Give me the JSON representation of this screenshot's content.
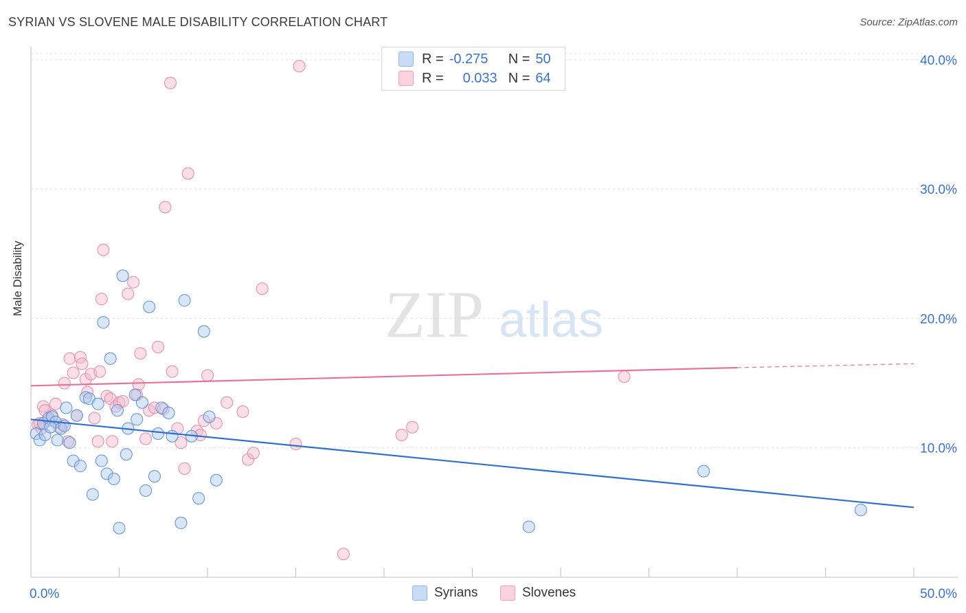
{
  "header": {
    "title": "SYRIAN VS SLOVENE MALE DISABILITY CORRELATION CHART",
    "source": "Source: ZipAtlas.com"
  },
  "watermark": {
    "zip": "ZIP",
    "atlas": "atlas"
  },
  "legend": {
    "rows": [
      {
        "r_label": "R =",
        "r_value": "-0.275",
        "n_label": "N =",
        "n_value": "50",
        "color": "#a9c8ef"
      },
      {
        "r_label": "R =",
        "r_value": "0.033",
        "n_label": "N =",
        "n_value": "64",
        "color": "#f5b8cb"
      }
    ]
  },
  "bottom_legend": {
    "syrians": "Syrians",
    "slovenes": "Slovenes"
  },
  "colors": {
    "syrian_fill": "#a9c8ef",
    "syrian_stroke": "#5b8fd4",
    "syrian_line": "#2f6fce",
    "slovene_fill": "#f5b8cb",
    "slovene_stroke": "#e38aa6",
    "slovene_line": "#e8709a",
    "tick_label": "#3b73c6"
  },
  "chart_data": {
    "type": "scatter",
    "title": "SYRIAN VS SLOVENE MALE DISABILITY CORRELATION CHART",
    "xlabel": "",
    "ylabel": "Male Disability",
    "xlim": [
      0,
      50
    ],
    "ylim": [
      0,
      41
    ],
    "x_tick_labels": [
      "0.0%",
      "50.0%"
    ],
    "y_ticks": [
      10,
      20,
      30,
      40
    ],
    "y_tick_labels": [
      "10.0%",
      "20.0%",
      "30.0%",
      "40.0%"
    ],
    "grid": "horizontal dashed",
    "legend_position": "top-center",
    "series": [
      {
        "name": "Syrians",
        "r": -0.275,
        "n": 50,
        "trend": {
          "x": [
            0,
            50
          ],
          "y": [
            12.2,
            5.4
          ]
        },
        "points": [
          [
            0.3,
            11.1
          ],
          [
            0.5,
            10.6
          ],
          [
            0.7,
            11.9
          ],
          [
            0.8,
            11.0
          ],
          [
            1.0,
            12.3
          ],
          [
            1.2,
            12.4
          ],
          [
            1.4,
            12.0
          ],
          [
            1.5,
            10.6
          ],
          [
            1.7,
            11.5
          ],
          [
            1.9,
            11.7
          ],
          [
            2.0,
            13.1
          ],
          [
            2.2,
            10.4
          ],
          [
            2.4,
            9.0
          ],
          [
            2.6,
            12.5
          ],
          [
            2.8,
            8.6
          ],
          [
            3.1,
            13.9
          ],
          [
            3.3,
            13.8
          ],
          [
            3.5,
            6.4
          ],
          [
            3.8,
            13.4
          ],
          [
            4.0,
            9.0
          ],
          [
            4.1,
            19.7
          ],
          [
            4.3,
            8.0
          ],
          [
            4.5,
            16.9
          ],
          [
            4.7,
            7.6
          ],
          [
            4.9,
            12.9
          ],
          [
            5.0,
            3.8
          ],
          [
            5.2,
            23.3
          ],
          [
            5.4,
            9.5
          ],
          [
            5.5,
            11.5
          ],
          [
            5.9,
            14.1
          ],
          [
            6.0,
            12.2
          ],
          [
            6.3,
            13.5
          ],
          [
            6.5,
            6.7
          ],
          [
            6.7,
            20.9
          ],
          [
            7.0,
            7.8
          ],
          [
            7.2,
            11.1
          ],
          [
            7.4,
            13.1
          ],
          [
            7.8,
            12.7
          ],
          [
            8.0,
            10.9
          ],
          [
            8.5,
            4.2
          ],
          [
            8.7,
            21.4
          ],
          [
            9.1,
            10.9
          ],
          [
            9.5,
            6.1
          ],
          [
            9.8,
            19.0
          ],
          [
            10.1,
            12.4
          ],
          [
            10.5,
            7.5
          ],
          [
            1.1,
            11.6
          ],
          [
            28.2,
            3.9
          ],
          [
            38.1,
            8.2
          ],
          [
            47.0,
            5.2
          ]
        ]
      },
      {
        "name": "Slovenes",
        "r": 0.033,
        "n": 64,
        "trend": {
          "x": [
            0,
            40
          ],
          "y": [
            14.8,
            16.2
          ],
          "dashed_to": [
            50,
            16.5
          ]
        },
        "points": [
          [
            0.4,
            11.8
          ],
          [
            0.6,
            11.5
          ],
          [
            0.7,
            13.2
          ],
          [
            0.8,
            12.9
          ],
          [
            1.0,
            12.1
          ],
          [
            1.2,
            12.5
          ],
          [
            1.4,
            13.4
          ],
          [
            1.6,
            11.6
          ],
          [
            1.8,
            11.8
          ],
          [
            1.9,
            15.0
          ],
          [
            2.1,
            10.5
          ],
          [
            2.2,
            16.9
          ],
          [
            2.4,
            15.8
          ],
          [
            2.6,
            12.5
          ],
          [
            2.8,
            17.0
          ],
          [
            2.9,
            16.5
          ],
          [
            3.1,
            15.3
          ],
          [
            3.2,
            14.3
          ],
          [
            3.4,
            15.7
          ],
          [
            3.6,
            12.3
          ],
          [
            3.8,
            10.5
          ],
          [
            3.9,
            15.9
          ],
          [
            4.0,
            21.5
          ],
          [
            4.1,
            25.3
          ],
          [
            4.3,
            14.0
          ],
          [
            4.5,
            13.8
          ],
          [
            4.6,
            10.5
          ],
          [
            4.8,
            13.2
          ],
          [
            5.0,
            13.5
          ],
          [
            5.2,
            13.6
          ],
          [
            5.5,
            21.9
          ],
          [
            5.8,
            22.8
          ],
          [
            6.0,
            14.1
          ],
          [
            6.1,
            14.9
          ],
          [
            6.2,
            17.3
          ],
          [
            6.5,
            10.7
          ],
          [
            6.7,
            12.9
          ],
          [
            7.0,
            13.1
          ],
          [
            7.2,
            17.8
          ],
          [
            7.5,
            13.0
          ],
          [
            7.6,
            28.6
          ],
          [
            7.9,
            38.2
          ],
          [
            8.0,
            15.9
          ],
          [
            8.3,
            11.5
          ],
          [
            8.5,
            10.4
          ],
          [
            8.7,
            8.4
          ],
          [
            8.9,
            31.2
          ],
          [
            9.4,
            11.3
          ],
          [
            9.6,
            11.0
          ],
          [
            9.8,
            12.1
          ],
          [
            10.0,
            15.6
          ],
          [
            10.5,
            11.9
          ],
          [
            11.1,
            13.5
          ],
          [
            12.0,
            12.8
          ],
          [
            12.3,
            9.1
          ],
          [
            12.6,
            9.6
          ],
          [
            13.1,
            22.3
          ],
          [
            15.0,
            10.3
          ],
          [
            15.2,
            39.5
          ],
          [
            17.7,
            1.8
          ],
          [
            21.0,
            11.0
          ],
          [
            21.6,
            11.6
          ],
          [
            33.6,
            15.5
          ],
          [
            0.5,
            11.9
          ]
        ]
      }
    ]
  }
}
